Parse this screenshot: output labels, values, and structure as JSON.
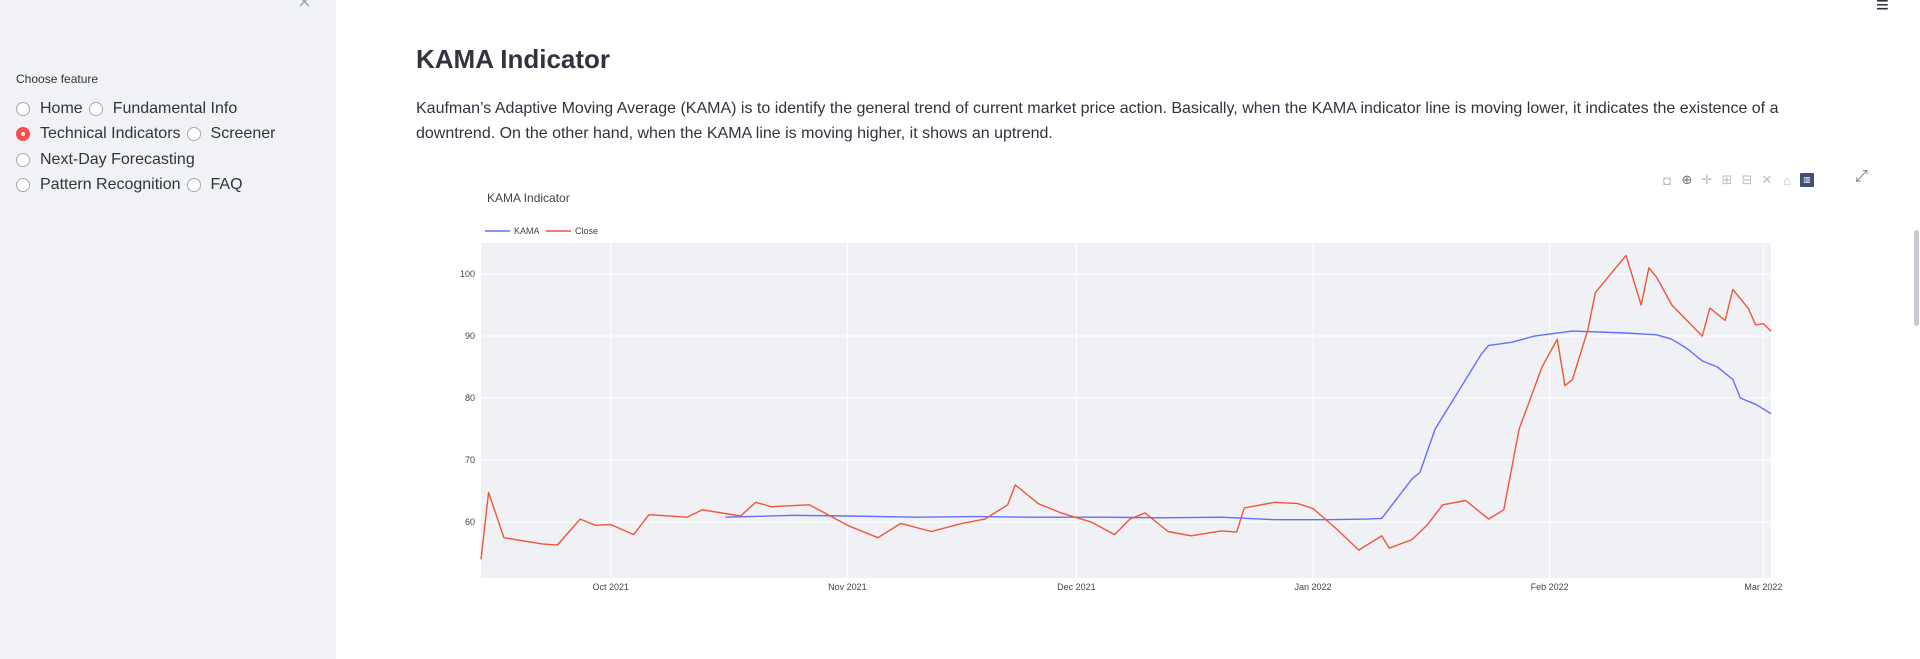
{
  "sidebar": {
    "close_icon": "close-icon",
    "label": "Choose feature",
    "options": [
      {
        "label": "Home",
        "checked": false
      },
      {
        "label": "Fundamental Info",
        "checked": false
      },
      {
        "label": "Technical Indicators",
        "checked": true
      },
      {
        "label": "Screener",
        "checked": false
      },
      {
        "label": "Next-Day Forecasting",
        "checked": false
      },
      {
        "label": "Pattern Recognition",
        "checked": false
      },
      {
        "label": "FAQ",
        "checked": false
      }
    ]
  },
  "header": {
    "menu_icon": "hamburger-menu-icon"
  },
  "main": {
    "title": "KAMA Indicator",
    "description": "Kaufman’s Adaptive Moving Average (KAMA) is to identify the general trend of current market price action. Basically, when the KAMA indicator line is moving lower, it indicates the existence of a downtrend. On the other hand, when the KAMA line is moving higher, it shows an uptrend."
  },
  "toolbar_icons": [
    "camera-icon",
    "zoom-icon",
    "pan-icon",
    "zoom-in-icon",
    "zoom-out-icon",
    "autoscale-icon",
    "reset-axes-icon",
    "plotly-logo-icon"
  ],
  "colors": {
    "accent": "#ff4b4b",
    "kama": "#636efa",
    "close": "#ef553b",
    "plot_bg": "#e5ecf6"
  },
  "chart_data": {
    "type": "line",
    "title": "KAMA Indicator",
    "x_range": [
      "2021-09-14",
      "2022-03-02"
    ],
    "ylim": [
      51,
      105
    ],
    "x_ticks": [
      "Oct 2021",
      "Nov 2021",
      "Dec 2021",
      "Jan 2022",
      "Feb 2022",
      "Mar 2022"
    ],
    "y_ticks": [
      60,
      70,
      80,
      90,
      100
    ],
    "legend": "top-left",
    "series": [
      {
        "name": "KAMA",
        "color": "#636efa",
        "points": [
          [
            "2021-10-16",
            60.8
          ],
          [
            "2021-10-25",
            61.1
          ],
          [
            "2021-11-01",
            61.0
          ],
          [
            "2021-11-10",
            60.8
          ],
          [
            "2021-11-18",
            60.9
          ],
          [
            "2021-11-25",
            60.8
          ],
          [
            "2021-12-05",
            60.8
          ],
          [
            "2021-12-12",
            60.7
          ],
          [
            "2021-12-20",
            60.8
          ],
          [
            "2021-12-27",
            60.4
          ],
          [
            "2022-01-03",
            60.4
          ],
          [
            "2022-01-08",
            60.5
          ],
          [
            "2022-01-10",
            60.6
          ],
          [
            "2022-01-14",
            67.0
          ],
          [
            "2022-01-15",
            68.0
          ],
          [
            "2022-01-17",
            75.0
          ],
          [
            "2022-01-21",
            83.0
          ],
          [
            "2022-01-23",
            87.0
          ],
          [
            "2022-01-24",
            88.5
          ],
          [
            "2022-01-27",
            89.0
          ],
          [
            "2022-01-30",
            90.0
          ],
          [
            "2022-02-04",
            90.8
          ],
          [
            "2022-02-11",
            90.5
          ],
          [
            "2022-02-15",
            90.2
          ],
          [
            "2022-02-17",
            89.5
          ],
          [
            "2022-02-19",
            88.0
          ],
          [
            "2022-02-21",
            86.0
          ],
          [
            "2022-02-23",
            85.0
          ],
          [
            "2022-02-25",
            83.0
          ],
          [
            "2022-02-26",
            80.0
          ],
          [
            "2022-02-28",
            79.0
          ],
          [
            "2022-03-02",
            77.5
          ]
        ]
      },
      {
        "name": "Close",
        "color": "#ef553b",
        "points": [
          [
            "2021-09-14",
            54.0
          ],
          [
            "2021-09-15",
            64.8
          ],
          [
            "2021-09-17",
            57.5
          ],
          [
            "2021-09-22",
            56.5
          ],
          [
            "2021-09-24",
            56.3
          ],
          [
            "2021-09-27",
            60.5
          ],
          [
            "2021-09-29",
            59.5
          ],
          [
            "2021-10-01",
            59.6
          ],
          [
            "2021-10-04",
            58.0
          ],
          [
            "2021-10-06",
            61.2
          ],
          [
            "2021-10-11",
            60.8
          ],
          [
            "2021-10-13",
            62.0
          ],
          [
            "2021-10-18",
            61.0
          ],
          [
            "2021-10-20",
            63.2
          ],
          [
            "2021-10-22",
            62.5
          ],
          [
            "2021-10-27",
            62.8
          ],
          [
            "2021-10-29",
            61.5
          ],
          [
            "2021-11-01",
            59.5
          ],
          [
            "2021-11-05",
            57.5
          ],
          [
            "2021-11-08",
            59.8
          ],
          [
            "2021-11-12",
            58.5
          ],
          [
            "2021-11-16",
            59.8
          ],
          [
            "2021-11-19",
            60.5
          ],
          [
            "2021-11-22",
            62.8
          ],
          [
            "2021-11-23",
            66.0
          ],
          [
            "2021-11-26",
            63.0
          ],
          [
            "2021-11-29",
            61.5
          ],
          [
            "2021-12-03",
            60.0
          ],
          [
            "2021-12-06",
            58.0
          ],
          [
            "2021-12-08",
            60.5
          ],
          [
            "2021-12-10",
            61.5
          ],
          [
            "2021-12-13",
            58.5
          ],
          [
            "2021-12-16",
            57.8
          ],
          [
            "2021-12-20",
            58.6
          ],
          [
            "2021-12-22",
            58.4
          ],
          [
            "2021-12-23",
            62.3
          ],
          [
            "2021-12-27",
            63.2
          ],
          [
            "2021-12-30",
            63.0
          ],
          [
            "2022-01-01",
            62.2
          ],
          [
            "2022-01-04",
            59.0
          ],
          [
            "2022-01-07",
            55.5
          ],
          [
            "2022-01-10",
            57.8
          ],
          [
            "2022-01-11",
            55.8
          ],
          [
            "2022-01-14",
            57.2
          ],
          [
            "2022-01-16",
            59.6
          ],
          [
            "2022-01-18",
            62.8
          ],
          [
            "2022-01-21",
            63.5
          ],
          [
            "2022-01-24",
            60.5
          ],
          [
            "2022-01-26",
            62.0
          ],
          [
            "2022-01-28",
            75.0
          ],
          [
            "2022-01-31",
            85.0
          ],
          [
            "2022-02-02",
            89.5
          ],
          [
            "2022-02-03",
            82.0
          ],
          [
            "2022-02-04",
            83.0
          ],
          [
            "2022-02-06",
            91.0
          ],
          [
            "2022-02-07",
            97.0
          ],
          [
            "2022-02-11",
            103.0
          ],
          [
            "2022-02-13",
            95.0
          ],
          [
            "2022-02-14",
            101.0
          ],
          [
            "2022-02-15",
            99.5
          ],
          [
            "2022-02-17",
            95.0
          ],
          [
            "2022-02-21",
            90.0
          ],
          [
            "2022-02-22",
            94.5
          ],
          [
            "2022-02-24",
            92.5
          ],
          [
            "2022-02-25",
            97.5
          ],
          [
            "2022-02-27",
            94.5
          ],
          [
            "2022-02-28",
            91.8
          ],
          [
            "2022-03-01",
            92.0
          ],
          [
            "2022-03-02",
            90.8
          ]
        ]
      }
    ]
  }
}
